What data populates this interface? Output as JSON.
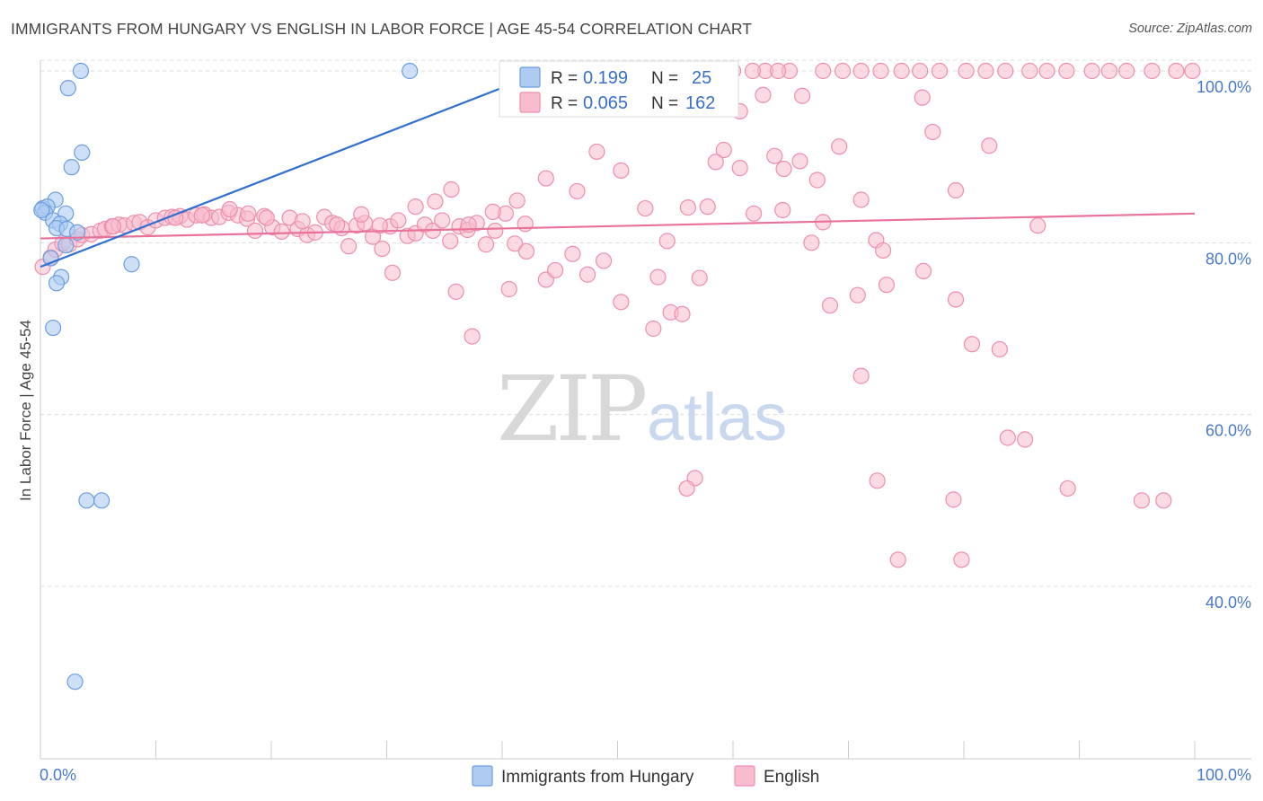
{
  "header": {
    "title": "IMMIGRANTS FROM HUNGARY VS ENGLISH IN LABOR FORCE | AGE 45-54 CORRELATION CHART",
    "source": "Source: ZipAtlas.com"
  },
  "watermark": {
    "zip": "ZIP",
    "atlas": "atlas"
  },
  "colors": {
    "blue_fill": "#aecbf2",
    "blue_stroke": "#6b9de0",
    "blue_line": "#2f6fd0",
    "pink_fill": "#f7bccd",
    "pink_stroke": "#ee8fab",
    "pink_line": "#e8729a",
    "grid": "#dddddd",
    "tick_text": "#4a78c8"
  },
  "legend": {
    "rows": [
      {
        "r_label": "R =",
        "r_value": "0.199",
        "n_label": "N =",
        "n_value": "25"
      },
      {
        "r_label": "R =",
        "r_value": "0.065",
        "n_label": "N =",
        "n_value": "162"
      }
    ]
  },
  "chart_data": {
    "type": "scatter",
    "title": "IMMIGRANTS FROM HUNGARY VS ENGLISH IN LABOR FORCE | AGE 45-54 CORRELATION CHART",
    "xlabel": "",
    "ylabel": "In Labor Force | Age 45-54",
    "xlim": [
      0,
      100
    ],
    "ylim": [
      20,
      103
    ],
    "x_tick_labels": [
      "0.0%",
      "100.0%"
    ],
    "y_ticks": [
      40,
      60,
      80,
      100
    ],
    "y_tick_labels": [
      "40.0%",
      "60.0%",
      "80.0%",
      "100.0%"
    ],
    "legend_position": "bottom-center",
    "series": [
      {
        "name": "Immigrants from Hungary",
        "trend": {
          "x": [
            0.0,
            40.5
          ],
          "y": [
            77.2,
            98.3
          ]
        },
        "points": [
          [
            3.5,
            100.0
          ],
          [
            32.0,
            100.0
          ],
          [
            2.4,
            98.0
          ],
          [
            3.6,
            90.5
          ],
          [
            2.7,
            88.8
          ],
          [
            1.3,
            85.0
          ],
          [
            0.2,
            84.0
          ],
          [
            0.6,
            84.2
          ],
          [
            0.4,
            83.5
          ],
          [
            2.2,
            83.4
          ],
          [
            1.1,
            82.6
          ],
          [
            1.7,
            82.2
          ],
          [
            1.4,
            81.7
          ],
          [
            2.3,
            81.6
          ],
          [
            3.2,
            81.2
          ],
          [
            2.2,
            79.7
          ],
          [
            0.9,
            78.2
          ],
          [
            1.8,
            76.0
          ],
          [
            1.4,
            75.3
          ],
          [
            7.9,
            77.5
          ],
          [
            1.1,
            70.1
          ],
          [
            4.0,
            50.0
          ],
          [
            5.3,
            50.0
          ],
          [
            3.0,
            28.9
          ],
          [
            0.1,
            83.8
          ]
        ]
      },
      {
        "name": "English",
        "trend": {
          "x": [
            0.0,
            100.0
          ],
          "y": [
            80.5,
            83.4
          ]
        },
        "points": [
          [
            0.2,
            77.2
          ],
          [
            0.9,
            78.3
          ],
          [
            1.3,
            79.2
          ],
          [
            1.9,
            79.9
          ],
          [
            2.5,
            79.8
          ],
          [
            3.2,
            80.4
          ],
          [
            3.6,
            80.9
          ],
          [
            4.4,
            81.0
          ],
          [
            5.2,
            81.4
          ],
          [
            5.6,
            81.6
          ],
          [
            6.2,
            81.9
          ],
          [
            6.8,
            82.1
          ],
          [
            7.3,
            82.0
          ],
          [
            8.1,
            82.3
          ],
          [
            8.6,
            82.4
          ],
          [
            9.3,
            81.8
          ],
          [
            10.0,
            82.6
          ],
          [
            10.8,
            82.9
          ],
          [
            11.4,
            83.0
          ],
          [
            12.1,
            83.1
          ],
          [
            12.7,
            82.7
          ],
          [
            13.5,
            83.2
          ],
          [
            14.2,
            83.3
          ],
          [
            14.8,
            82.9
          ],
          [
            15.5,
            83.0
          ],
          [
            16.3,
            83.5
          ],
          [
            17.1,
            83.2
          ],
          [
            17.9,
            82.8
          ],
          [
            18.6,
            81.4
          ],
          [
            19.4,
            83.1
          ],
          [
            20.1,
            81.8
          ],
          [
            20.9,
            81.3
          ],
          [
            21.6,
            82.9
          ],
          [
            22.3,
            81.6
          ],
          [
            23.1,
            80.9
          ],
          [
            23.8,
            81.2
          ],
          [
            24.6,
            83.0
          ],
          [
            25.3,
            82.3
          ],
          [
            26.1,
            81.7
          ],
          [
            26.7,
            79.6
          ],
          [
            27.4,
            82.0
          ],
          [
            28.1,
            82.3
          ],
          [
            28.8,
            80.7
          ],
          [
            29.6,
            79.3
          ],
          [
            30.3,
            81.9
          ],
          [
            31.0,
            82.6
          ],
          [
            31.8,
            80.8
          ],
          [
            32.5,
            81.1
          ],
          [
            33.3,
            82.1
          ],
          [
            34.0,
            81.4
          ],
          [
            34.8,
            82.6
          ],
          [
            35.5,
            80.2
          ],
          [
            36.3,
            81.9
          ],
          [
            37.0,
            81.5
          ],
          [
            37.8,
            82.3
          ],
          [
            38.6,
            79.8
          ],
          [
            39.4,
            81.4
          ],
          [
            40.3,
            83.4
          ],
          [
            41.1,
            79.9
          ],
          [
            42.0,
            82.2
          ],
          [
            6.3,
            81.9
          ],
          [
            11.7,
            82.9
          ],
          [
            14.0,
            83.2
          ],
          [
            16.4,
            83.9
          ],
          [
            18.0,
            83.4
          ],
          [
            19.6,
            82.9
          ],
          [
            22.7,
            82.5
          ],
          [
            25.7,
            82.1
          ],
          [
            27.8,
            83.3
          ],
          [
            29.4,
            82.0
          ],
          [
            32.5,
            84.2
          ],
          [
            34.2,
            84.8
          ],
          [
            35.6,
            86.2
          ],
          [
            37.1,
            82.1
          ],
          [
            39.2,
            83.6
          ],
          [
            41.3,
            84.9
          ],
          [
            43.8,
            87.5
          ],
          [
            46.5,
            86.0
          ],
          [
            48.2,
            90.6
          ],
          [
            50.3,
            88.4
          ],
          [
            52.4,
            84.0
          ],
          [
            54.3,
            80.2
          ],
          [
            56.1,
            84.1
          ],
          [
            57.8,
            84.2
          ],
          [
            59.2,
            90.8
          ],
          [
            60.6,
            88.7
          ],
          [
            61.8,
            83.4
          ],
          [
            63.6,
            90.1
          ],
          [
            64.4,
            88.6
          ],
          [
            65.8,
            89.5
          ],
          [
            67.3,
            87.3
          ],
          [
            69.2,
            91.2
          ],
          [
            71.1,
            85.0
          ],
          [
            72.4,
            80.3
          ],
          [
            73.3,
            75.1
          ],
          [
            76.4,
            96.9
          ],
          [
            77.3,
            92.9
          ],
          [
            79.3,
            86.1
          ],
          [
            82.2,
            91.3
          ],
          [
            86.4,
            82.0
          ],
          [
            30.5,
            76.5
          ],
          [
            36.0,
            74.3
          ],
          [
            37.4,
            69.1
          ],
          [
            40.6,
            74.6
          ],
          [
            42.1,
            79.0
          ],
          [
            43.8,
            75.7
          ],
          [
            44.6,
            76.8
          ],
          [
            46.1,
            78.7
          ],
          [
            47.4,
            76.3
          ],
          [
            48.8,
            77.9
          ],
          [
            50.3,
            73.1
          ],
          [
            53.1,
            70.0
          ],
          [
            53.5,
            76.0
          ],
          [
            54.6,
            71.9
          ],
          [
            55.6,
            71.7
          ],
          [
            57.1,
            75.9
          ],
          [
            59.3,
            100.0
          ],
          [
            58.5,
            89.4
          ],
          [
            60.6,
            95.3
          ],
          [
            62.6,
            97.2
          ],
          [
            64.3,
            83.8
          ],
          [
            66.8,
            80.0
          ],
          [
            67.8,
            82.4
          ],
          [
            68.4,
            72.7
          ],
          [
            70.8,
            73.9
          ],
          [
            73.0,
            79.1
          ],
          [
            74.6,
            100.0
          ],
          [
            76.2,
            100.0
          ],
          [
            77.9,
            100.0
          ],
          [
            80.2,
            100.0
          ],
          [
            81.9,
            100.0
          ],
          [
            83.6,
            100.0
          ],
          [
            85.7,
            100.0
          ],
          [
            87.2,
            100.0
          ],
          [
            88.9,
            100.0
          ],
          [
            91.1,
            100.0
          ],
          [
            92.6,
            100.0
          ],
          [
            94.1,
            100.0
          ],
          [
            96.3,
            100.0
          ],
          [
            98.4,
            100.0
          ],
          [
            99.8,
            100.0
          ],
          [
            69.5,
            100.0
          ],
          [
            71.1,
            100.0
          ],
          [
            72.8,
            100.0
          ],
          [
            67.8,
            100.0
          ],
          [
            76.5,
            76.7
          ],
          [
            79.3,
            73.4
          ],
          [
            80.7,
            68.2
          ],
          [
            83.1,
            67.6
          ],
          [
            83.8,
            57.3
          ],
          [
            85.3,
            57.1
          ],
          [
            89.0,
            51.4
          ],
          [
            95.4,
            50.0
          ],
          [
            97.3,
            50.0
          ],
          [
            71.1,
            64.5
          ],
          [
            72.5,
            52.3
          ],
          [
            79.1,
            50.1
          ],
          [
            74.3,
            43.1
          ],
          [
            79.8,
            43.1
          ],
          [
            56.7,
            52.6
          ],
          [
            56.0,
            51.4
          ],
          [
            64.9,
            100.0
          ],
          [
            66.0,
            97.1
          ],
          [
            62.8,
            100.0
          ],
          [
            61.7,
            100.0
          ],
          [
            63.9,
            100.0
          ],
          [
            60.0,
            100.0
          ]
        ]
      }
    ]
  }
}
